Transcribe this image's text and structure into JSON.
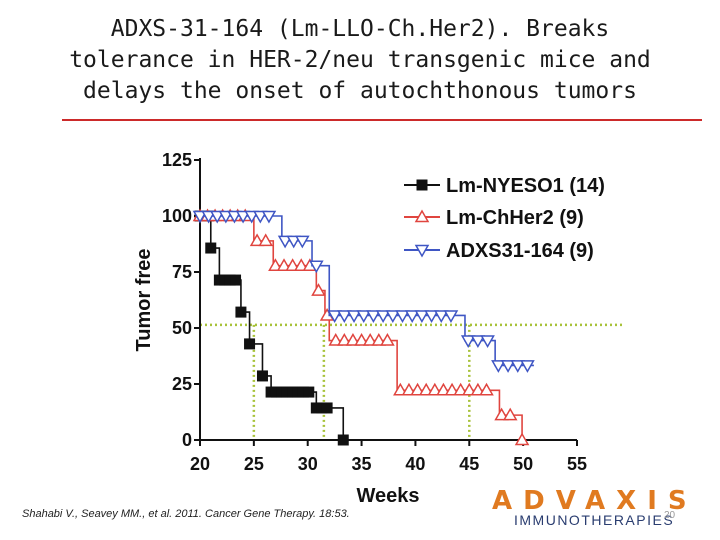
{
  "slide": {
    "title_lines": [
      "ADXS-31-164 (Lm-LLO-Ch.Her2). Breaks",
      "tolerance in HER-2/neu transgenic mice and",
      "delays the onset of autochthonous tumors"
    ],
    "citation": "Shahabi V., Seavey MM., et al. 2011. Cancer Gene Therapy. 18:53.",
    "logo_text": "ADVAXIS",
    "logo_subtext": "IMMUNOTHERAPIES",
    "page_number": "20",
    "accent_color": "#cc2a2a",
    "logo_color": "#e07a20"
  },
  "chart_data": {
    "type": "line",
    "subtype": "kaplan-meier step",
    "xlabel": "Weeks",
    "ylabel": "Tumor free",
    "xlim": [
      20,
      55
    ],
    "ylim": [
      0,
      125
    ],
    "xticks": [
      "20",
      "25",
      "30",
      "35",
      "40",
      "45",
      "50",
      "55"
    ],
    "yticks": [
      "0",
      "25",
      "50",
      "75",
      "100",
      "125"
    ],
    "grid": false,
    "legend_position": "top-right",
    "series": [
      {
        "name": "Lm-NYESO1 (14)",
        "color": "#111111",
        "marker": "square",
        "steps": [
          [
            20,
            100
          ],
          [
            21,
            85.7
          ],
          [
            21.8,
            71.4
          ],
          [
            23.8,
            57.1
          ],
          [
            24.6,
            42.9
          ],
          [
            25.8,
            28.6
          ],
          [
            26.6,
            21.4
          ],
          [
            30.8,
            14.3
          ],
          [
            33.3,
            0
          ]
        ],
        "markers": [
          [
            20,
            100
          ],
          [
            20.8,
            100
          ],
          [
            21,
            85.7
          ],
          [
            21.8,
            71.4
          ],
          [
            22.3,
            71.4
          ],
          [
            22.8,
            71.4
          ],
          [
            23.3,
            71.4
          ],
          [
            23.8,
            57.1
          ],
          [
            24.6,
            42.9
          ],
          [
            25.8,
            28.6
          ],
          [
            26.6,
            21.4
          ],
          [
            27.1,
            21.4
          ],
          [
            27.6,
            21.4
          ],
          [
            28.1,
            21.4
          ],
          [
            28.6,
            21.4
          ],
          [
            29.1,
            21.4
          ],
          [
            29.6,
            21.4
          ],
          [
            30.1,
            21.4
          ],
          [
            30.8,
            14.3
          ],
          [
            31.3,
            14.3
          ],
          [
            31.8,
            14.3
          ],
          [
            33.3,
            0
          ]
        ]
      },
      {
        "name": "Lm-ChHer2 (9)",
        "color": "#e0453f",
        "marker": "triangle-up",
        "steps": [
          [
            20,
            100
          ],
          [
            25,
            88.9
          ],
          [
            26.8,
            77.8
          ],
          [
            30.8,
            66.7
          ],
          [
            31.6,
            55.6
          ],
          [
            32,
            44.4
          ],
          [
            38.3,
            22.2
          ],
          [
            47.8,
            11.1
          ],
          [
            49.9,
            0
          ]
        ],
        "markers": [
          [
            20,
            100
          ],
          [
            20.7,
            100
          ],
          [
            21.4,
            100
          ],
          [
            22.1,
            100
          ],
          [
            22.8,
            100
          ],
          [
            23.5,
            100
          ],
          [
            24.2,
            100
          ],
          [
            25.3,
            88.9
          ],
          [
            26.1,
            88.9
          ],
          [
            27,
            77.8
          ],
          [
            27.8,
            77.8
          ],
          [
            28.6,
            77.8
          ],
          [
            29.4,
            77.8
          ],
          [
            30.2,
            77.8
          ],
          [
            31,
            66.7
          ],
          [
            31.8,
            55.6
          ],
          [
            32.6,
            44.4
          ],
          [
            33.4,
            44.4
          ],
          [
            34.2,
            44.4
          ],
          [
            35,
            44.4
          ],
          [
            35.8,
            44.4
          ],
          [
            36.6,
            44.4
          ],
          [
            37.4,
            44.4
          ],
          [
            38.6,
            22.2
          ],
          [
            39.4,
            22.2
          ],
          [
            40.2,
            22.2
          ],
          [
            41,
            22.2
          ],
          [
            41.8,
            22.2
          ],
          [
            42.6,
            22.2
          ],
          [
            43.4,
            22.2
          ],
          [
            44.2,
            22.2
          ],
          [
            45,
            22.2
          ],
          [
            45.8,
            22.2
          ],
          [
            46.6,
            22.2
          ],
          [
            48,
            11.1
          ],
          [
            48.8,
            11.1
          ],
          [
            49.9,
            0
          ]
        ]
      },
      {
        "name": "ADXS31-164 (9)",
        "color": "#3f56c4",
        "marker": "triangle-down",
        "steps": [
          [
            20,
            100
          ],
          [
            27.6,
            88.9
          ],
          [
            30.4,
            77.8
          ],
          [
            32,
            55.6
          ],
          [
            44.6,
            44.4
          ],
          [
            47.4,
            33.3
          ],
          [
            51,
            33.3
          ]
        ],
        "markers": [
          [
            20,
            100
          ],
          [
            20.8,
            100
          ],
          [
            21.6,
            100
          ],
          [
            22.4,
            100
          ],
          [
            23.2,
            100
          ],
          [
            24,
            100
          ],
          [
            24.8,
            100
          ],
          [
            25.6,
            100
          ],
          [
            26.4,
            100
          ],
          [
            27.9,
            88.9
          ],
          [
            28.7,
            88.9
          ],
          [
            29.5,
            88.9
          ],
          [
            30.8,
            77.8
          ],
          [
            32.5,
            55.6
          ],
          [
            33.4,
            55.6
          ],
          [
            34.3,
            55.6
          ],
          [
            35.2,
            55.6
          ],
          [
            36.1,
            55.6
          ],
          [
            37,
            55.6
          ],
          [
            37.9,
            55.6
          ],
          [
            38.8,
            55.6
          ],
          [
            39.7,
            55.6
          ],
          [
            40.6,
            55.6
          ],
          [
            41.5,
            55.6
          ],
          [
            42.4,
            55.6
          ],
          [
            43.3,
            55.6
          ],
          [
            44.9,
            44.4
          ],
          [
            45.8,
            44.4
          ],
          [
            46.7,
            44.4
          ],
          [
            47.7,
            33.3
          ],
          [
            48.6,
            33.3
          ],
          [
            49.5,
            33.3
          ],
          [
            50.4,
            33.3
          ]
        ]
      }
    ],
    "reference_lines": {
      "color": "#a8c23a",
      "horizontal_y": 51.4,
      "median_weeks": [
        25,
        31.5,
        45
      ]
    }
  }
}
